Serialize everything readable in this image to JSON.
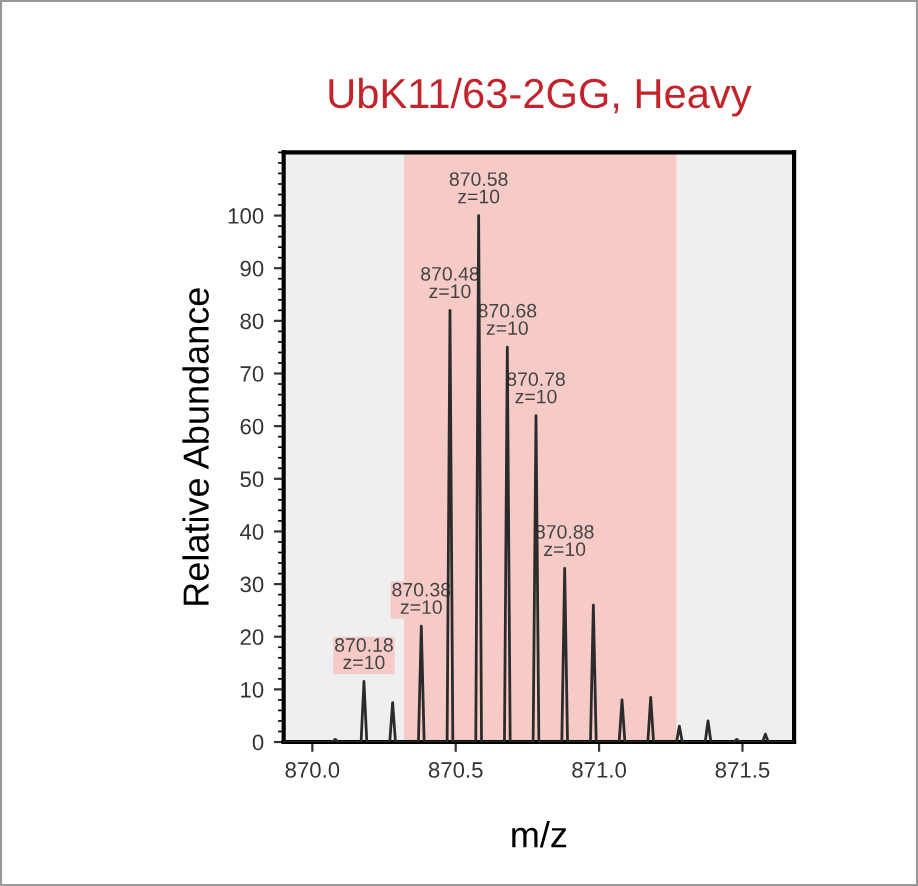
{
  "chart_data": {
    "type": "line",
    "title": "UbK11/63-2GG, Heavy",
    "xlabel": "m/z",
    "ylabel": "Relative Abundance",
    "x": [
      869.9,
      870.07,
      870.08,
      870.09,
      870.17,
      870.18,
      870.19,
      870.27,
      870.28,
      870.29,
      870.37,
      870.38,
      870.39,
      870.47,
      870.48,
      870.49,
      870.57,
      870.58,
      870.59,
      870.67,
      870.68,
      870.69,
      870.77,
      870.78,
      870.79,
      870.87,
      870.88,
      870.89,
      870.97,
      870.98,
      870.99,
      871.07,
      871.08,
      871.09,
      871.17,
      871.18,
      871.19,
      871.27,
      871.28,
      871.29,
      871.37,
      871.38,
      871.39,
      871.47,
      871.48,
      871.49,
      871.57,
      871.58,
      871.59,
      871.68
    ],
    "series": [
      {
        "color": "#2b2b2b",
        "values": [
          0,
          0,
          0.5,
          0,
          0,
          11.5,
          0,
          0,
          7.5,
          0,
          0,
          22,
          0,
          0,
          82,
          0,
          0,
          100,
          0,
          0,
          75,
          0,
          0,
          62,
          0,
          0,
          33,
          0,
          0,
          26,
          0,
          0,
          8,
          0,
          0,
          8.5,
          0,
          0,
          3,
          0,
          0,
          4,
          0,
          0,
          0.5,
          0,
          0,
          1.5,
          0,
          0
        ]
      }
    ],
    "xlim": [
      869.9,
      871.68
    ],
    "ylim": [
      0,
      112
    ],
    "xticks": [
      {
        "value": 870,
        "label": "870.0"
      },
      870.5,
      {
        "value": 871,
        "label": "871.0"
      },
      871.5
    ],
    "yticks": [
      0,
      10,
      20,
      30,
      40,
      50,
      60,
      70,
      80,
      90,
      100
    ],
    "bands": [
      {
        "axis": "x",
        "from": 870.32,
        "to": 871.27,
        "color": "#f6cbc7"
      }
    ],
    "annotations": [
      {
        "text": "870.18\nz=10",
        "x": 870.18,
        "y": 11.5
      },
      {
        "text": "870.38\nz=10",
        "x": 870.38,
        "y": 22
      },
      {
        "text": "870.48\nz=10",
        "x": 870.48,
        "y": 82
      },
      {
        "text": "870.58\nz=10",
        "x": 870.58,
        "y": 100
      },
      {
        "text": "870.68\nz=10",
        "x": 870.68,
        "y": 75
      },
      {
        "text": "870.78\nz=10",
        "x": 870.78,
        "y": 62
      },
      {
        "text": "870.88\nz=10",
        "x": 870.88,
        "y": 33
      }
    ],
    "grid": false,
    "legend": false,
    "marker": "none",
    "line_style": "solid"
  }
}
